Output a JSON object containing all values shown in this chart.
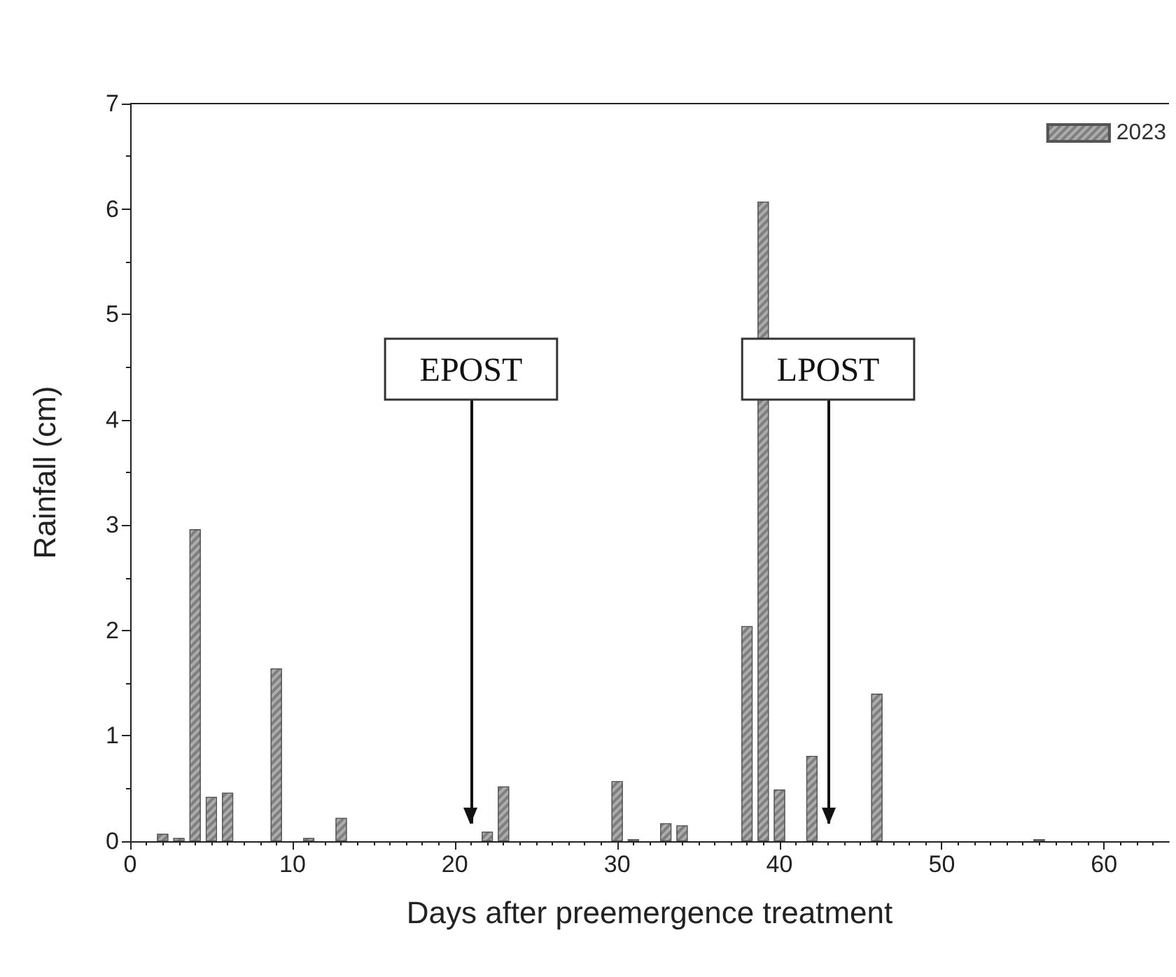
{
  "chart_data": {
    "type": "bar",
    "xlabel": "Days after preemergence treatment",
    "ylabel": "Rainfall (cm)",
    "x": [
      2,
      3,
      4,
      5,
      6,
      9,
      11,
      13,
      22,
      23,
      30,
      31,
      33,
      34,
      38,
      39,
      40,
      42,
      46,
      56
    ],
    "series": [
      {
        "name": "2023",
        "color": "#7f7f7f",
        "values": [
          0.07,
          0.03,
          2.96,
          0.42,
          0.46,
          1.64,
          0.03,
          0.22,
          0.09,
          0.52,
          0.57,
          0.02,
          0.17,
          0.15,
          2.04,
          6.07,
          0.49,
          0.81,
          1.4,
          0.02
        ]
      }
    ],
    "xlim": [
      0,
      64
    ],
    "xticks": [
      0,
      10,
      20,
      30,
      40,
      50,
      60
    ],
    "ylim": [
      0,
      7
    ],
    "yticks": [
      0,
      1,
      2,
      3,
      4,
      5,
      6,
      7
    ],
    "ref_lines": [
      {
        "axis": "x",
        "value": 21,
        "label": "EPOST"
      },
      {
        "axis": "x",
        "value": 43,
        "label": "LPOST"
      }
    ],
    "legend": "top right",
    "grid": false
  }
}
